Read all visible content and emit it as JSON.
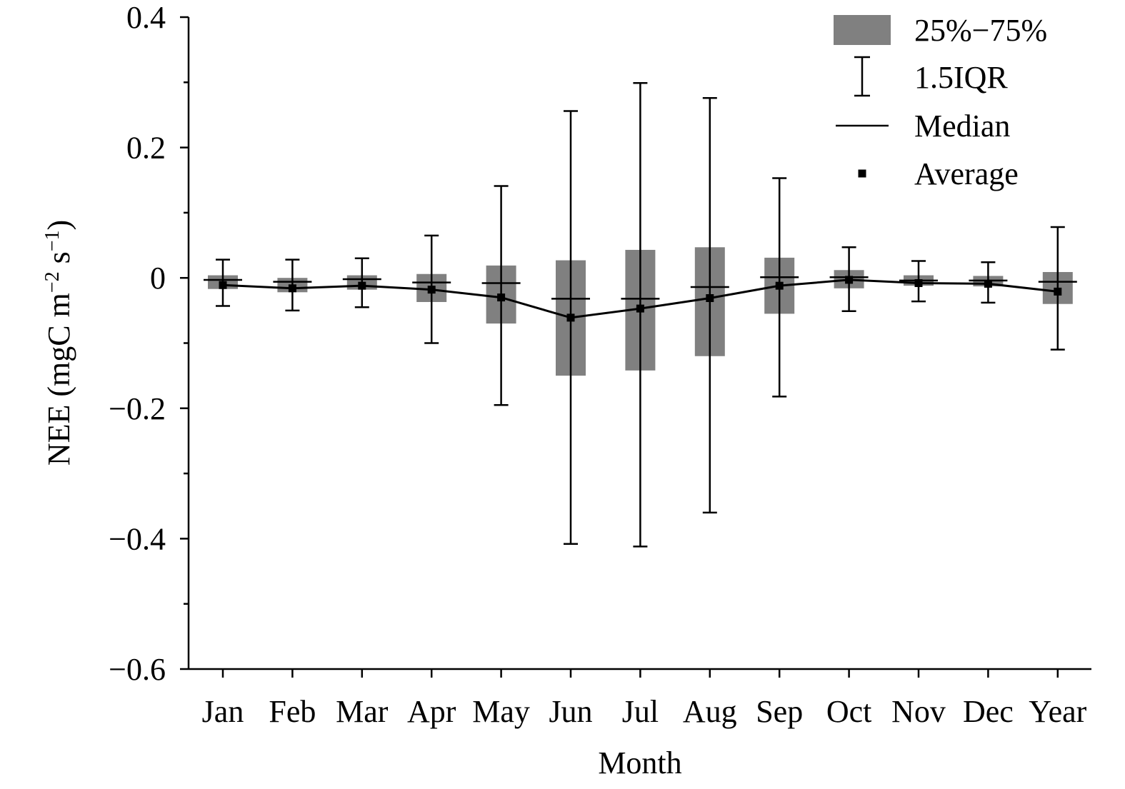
{
  "chart_data": {
    "type": "box",
    "xlabel": "Month",
    "ylabel": {
      "prefix": "NEE (mgC m",
      "sup1": "−2",
      "middle": " s",
      "sup2": "−1",
      "suffix": ")"
    },
    "ylim": [
      -0.6,
      0.4
    ],
    "yticks": [
      0.4,
      0.2,
      0,
      -0.2,
      -0.4,
      -0.6
    ],
    "ytick_labels": [
      "0.4",
      "0.2",
      "0",
      "−0.2",
      "−0.4",
      "−0.6"
    ],
    "categories": [
      "Jan",
      "Feb",
      "Mar",
      "Apr",
      "May",
      "Jun",
      "Jul",
      "Aug",
      "Sep",
      "Oct",
      "Nov",
      "Dec",
      "Year"
    ],
    "whisker_low": [
      -0.043,
      -0.05,
      -0.045,
      -0.1,
      -0.195,
      -0.408,
      -0.412,
      -0.36,
      -0.182,
      -0.051,
      -0.036,
      -0.038,
      -0.11
    ],
    "q1": [
      -0.017,
      -0.022,
      -0.018,
      -0.037,
      -0.07,
      -0.15,
      -0.142,
      -0.12,
      -0.055,
      -0.016,
      -0.012,
      -0.013,
      -0.04
    ],
    "median": [
      -0.003,
      -0.006,
      -0.002,
      -0.007,
      -0.008,
      -0.032,
      -0.032,
      -0.014,
      0.001,
      0.001,
      -0.004,
      -0.004,
      -0.006
    ],
    "q3": [
      0.004,
      0.0,
      0.004,
      0.006,
      0.019,
      0.027,
      0.043,
      0.047,
      0.031,
      0.012,
      0.004,
      0.003,
      0.009
    ],
    "whisker_high": [
      0.028,
      0.028,
      0.03,
      0.065,
      0.141,
      0.256,
      0.299,
      0.276,
      0.153,
      0.047,
      0.026,
      0.024,
      0.078
    ],
    "average": [
      -0.011,
      -0.016,
      -0.012,
      -0.018,
      -0.03,
      -0.061,
      -0.047,
      -0.031,
      -0.012,
      -0.003,
      -0.008,
      -0.009,
      -0.021
    ],
    "legend": {
      "position": "top-right",
      "items": [
        {
          "kind": "box",
          "label": "25%−75%"
        },
        {
          "kind": "whisker",
          "label": "1.5IQR"
        },
        {
          "kind": "median",
          "label": "Median"
        },
        {
          "kind": "average",
          "label": "Average"
        }
      ]
    },
    "colors": {
      "box_fill": "#808080",
      "line": "#000000",
      "background": "#ffffff"
    },
    "grid": false
  }
}
